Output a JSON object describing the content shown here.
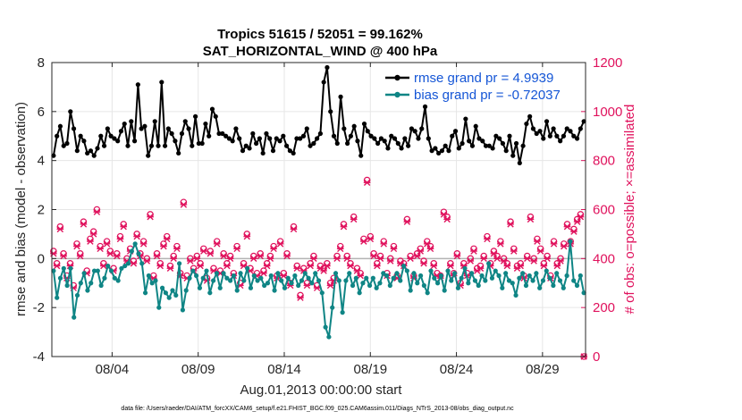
{
  "chart_data": {
    "type": "line",
    "title": "Tropics 51615 / 52051 = 99.162%",
    "subtitle": "SAT_HORIZONTAL_WIND @ 400 hPa",
    "xlabel": "Aug.01,2013 00:00:00 start",
    "ylabel_left": "rmse and bias (model - observation)",
    "ylabel_right": "# of obs: o=possible; ×=assimilated",
    "xlim": [
      0,
      31
    ],
    "ylim_left": [
      -4,
      8
    ],
    "ylim_right": [
      0,
      1200
    ],
    "yticks_left": [
      -4,
      -2,
      0,
      2,
      4,
      6,
      8
    ],
    "yticks_right": [
      0,
      200,
      400,
      600,
      800,
      1000,
      1200
    ],
    "xticks": [
      {
        "day": 3.5,
        "label": "08/04"
      },
      {
        "day": 8.5,
        "label": "08/09"
      },
      {
        "day": 13.5,
        "label": "08/14"
      },
      {
        "day": 18.5,
        "label": "08/19"
      },
      {
        "day": 23.5,
        "label": "08/24"
      },
      {
        "day": 28.5,
        "label": "08/29"
      }
    ],
    "grid": true,
    "legend_position": "top-right",
    "series": [
      {
        "name": "rmse grand pr = 4.9939",
        "axis": "left",
        "color": "#000000",
        "values": [
          4.2,
          5.0,
          5.4,
          4.6,
          4.7,
          6.0,
          5.3,
          4.4,
          5.0,
          4.8,
          4.3,
          4.4,
          4.2,
          4.5,
          5.0,
          4.6,
          5.3,
          5.0,
          4.9,
          4.8,
          5.2,
          5.5,
          4.6,
          5.6,
          4.8,
          7.1,
          5.3,
          5.4,
          4.2,
          4.6,
          5.6,
          4.6,
          7.2,
          4.6,
          5.3,
          5.1,
          4.8,
          4.3,
          5.1,
          5.6,
          5.3,
          4.6,
          5.8,
          4.7,
          4.7,
          5.5,
          5.0,
          6.1,
          5.8,
          5.1,
          5.1,
          5.0,
          4.9,
          4.8,
          5.3,
          4.9,
          4.4,
          4.6,
          4.5,
          5.1,
          4.7,
          4.9,
          4.3,
          5.1,
          4.9,
          4.4,
          4.9,
          4.8,
          5.0,
          4.6,
          4.4,
          4.3,
          4.9,
          4.9,
          5.0,
          5.3,
          4.6,
          4.7,
          4.9,
          5.1,
          7.2,
          7.8,
          6.0,
          5.0,
          4.7,
          6.6,
          5.3,
          4.7,
          5.0,
          5.4,
          4.8,
          4.2,
          5.5,
          5.2,
          5.0,
          4.9,
          4.7,
          4.9,
          4.8,
          4.5,
          5.0,
          4.9,
          4.7,
          4.5,
          4.9,
          4.6,
          5.3,
          5.2,
          4.9,
          5.3,
          6.2,
          4.9,
          4.4,
          4.5,
          4.3,
          4.4,
          4.6,
          4.4,
          5.0,
          5.2,
          4.5,
          4.7,
          5.7,
          4.8,
          4.6,
          5.4,
          4.9,
          4.8,
          4.6,
          4.6,
          4.5,
          5.0,
          4.9,
          4.7,
          4.4,
          5.0,
          4.2,
          4.7,
          3.9,
          4.6,
          5.5,
          5.8,
          5.3,
          5.1,
          5.2,
          4.9,
          5.6,
          5.0,
          5.3,
          5.0,
          4.8,
          5.0,
          5.3,
          5.2,
          5.0,
          4.9,
          5.3,
          5.6
        ]
      },
      {
        "name": "bias grand pr = -0.72037",
        "axis": "left",
        "color": "#0f8585",
        "values": [
          -0.5,
          -1.6,
          -0.8,
          -0.4,
          -1.1,
          -0.4,
          -2.4,
          -1.5,
          -1.0,
          -0.6,
          -1.3,
          -1.0,
          -0.5,
          -0.5,
          -1.1,
          -0.8,
          -0.3,
          -0.5,
          -0.8,
          -0.9,
          -0.4,
          -0.3,
          -0.2,
          0.3,
          0.6,
          0.2,
          -0.2,
          -1.4,
          -0.7,
          -1.0,
          -0.9,
          -2.0,
          -1.2,
          -1.4,
          -1.6,
          -1.3,
          -1.5,
          -0.2,
          -2.1,
          -1.3,
          -0.8,
          -0.5,
          -0.7,
          -1.2,
          -0.8,
          -0.5,
          -1.4,
          -0.9,
          -0.6,
          -1.2,
          -0.6,
          -0.8,
          -0.9,
          -0.7,
          -1.3,
          -0.6,
          -0.9,
          -0.4,
          -1.2,
          -0.7,
          -0.9,
          -0.8,
          -1.1,
          -1.0,
          -0.7,
          -1.3,
          -0.6,
          -0.9,
          -1.2,
          -0.8,
          -1.0,
          -0.7,
          -1.1,
          -0.9,
          -0.6,
          -0.8,
          -1.0,
          -0.6,
          -0.9,
          -1.4,
          -2.8,
          -3.2,
          -2.0,
          -0.6,
          -0.9,
          -2.2,
          -0.9,
          -0.6,
          -1.1,
          -0.8,
          -1.4,
          -1.0,
          -0.8,
          -1.1,
          -0.8,
          -1.2,
          -1.0,
          -0.6,
          -0.7,
          -1.1,
          -0.8,
          -0.6,
          -0.9,
          -0.3,
          -0.5,
          -1.3,
          -0.6,
          -1.0,
          -0.7,
          -1.1,
          -1.4,
          -0.5,
          -0.8,
          -1.0,
          -0.7,
          -1.3,
          -0.5,
          -0.9,
          -0.6,
          -1.2,
          -0.8,
          -0.4,
          -1.0,
          -0.6,
          -0.9,
          -1.1,
          -0.7,
          -0.9,
          -0.2,
          -0.8,
          -0.5,
          -0.7,
          -1.2,
          -0.6,
          -0.9,
          -1.0,
          -1.5,
          -0.8,
          -0.6,
          -1.1,
          -0.7,
          -0.9,
          -0.6,
          -1.2,
          -0.9,
          -0.5,
          -0.8,
          -1.1,
          -0.6,
          -0.9,
          -1.2,
          -0.7,
          0.7,
          -0.9,
          -1.1,
          -0.7,
          -1.4
        ]
      },
      {
        "name": "possible",
        "axis": "right",
        "color": "#e0125d",
        "marker": "o",
        "values": [
          430,
          380,
          530,
          420,
          330,
          380,
          290,
          460,
          420,
          550,
          350,
          480,
          510,
          600,
          450,
          380,
          470,
          430,
          360,
          420,
          490,
          540,
          400,
          440,
          390,
          500,
          420,
          470,
          400,
          580,
          330,
          420,
          380,
          460,
          490,
          370,
          410,
          450,
          340,
          630,
          330,
          400,
          360,
          410,
          380,
          440,
          320,
          430,
          360,
          470,
          350,
          420,
          380,
          410,
          340,
          450,
          300,
          380,
          500,
          360,
          410,
          340,
          420,
          350,
          380,
          410,
          450,
          330,
          470,
          340,
          420,
          300,
          530,
          370,
          250,
          360,
          300,
          380,
          410,
          290,
          370,
          360,
          380,
          300,
          320,
          410,
          450,
          540,
          410,
          380,
          570,
          360,
          340,
          480,
          720,
          490,
          420,
          380,
          410,
          470,
          340,
          400,
          450,
          330,
          390,
          380,
          560,
          410,
          330,
          420,
          440,
          390,
          470,
          450,
          380,
          340,
          330,
          590,
          570,
          380,
          340,
          420,
          300,
          380,
          340,
          400,
          440,
          360,
          370,
          410,
          490,
          380,
          430,
          410,
          470,
          400,
          380,
          550,
          440,
          370,
          380,
          330,
          410,
          570,
          400,
          480,
          440,
          380,
          410,
          330,
          470,
          380,
          400,
          460,
          540,
          470,
          520,
          560,
          580,
          0
        ]
      },
      {
        "name": "assimilated",
        "axis": "right",
        "color": "#e0125d",
        "marker": "x",
        "values": [
          420,
          370,
          520,
          410,
          320,
          370,
          280,
          450,
          410,
          540,
          340,
          470,
          500,
          590,
          440,
          370,
          460,
          420,
          350,
          410,
          480,
          530,
          390,
          430,
          380,
          490,
          410,
          460,
          390,
          570,
          320,
          410,
          370,
          450,
          480,
          360,
          400,
          440,
          330,
          620,
          320,
          390,
          350,
          400,
          370,
          430,
          310,
          420,
          350,
          460,
          340,
          410,
          370,
          400,
          330,
          440,
          290,
          370,
          490,
          350,
          400,
          330,
          410,
          340,
          370,
          400,
          440,
          320,
          460,
          330,
          410,
          290,
          520,
          360,
          240,
          350,
          290,
          370,
          400,
          280,
          360,
          350,
          370,
          290,
          310,
          400,
          440,
          530,
          400,
          370,
          560,
          350,
          330,
          470,
          710,
          480,
          410,
          370,
          400,
          460,
          330,
          390,
          440,
          320,
          380,
          370,
          550,
          400,
          320,
          410,
          430,
          380,
          460,
          440,
          370,
          330,
          320,
          580,
          560,
          370,
          330,
          410,
          290,
          370,
          330,
          390,
          430,
          350,
          360,
          400,
          480,
          370,
          420,
          400,
          460,
          390,
          370,
          540,
          430,
          360,
          370,
          320,
          400,
          560,
          390,
          470,
          430,
          370,
          400,
          320,
          460,
          370,
          390,
          450,
          530,
          460,
          510,
          550,
          570,
          0
        ]
      }
    ],
    "legend": [
      {
        "label": "rmse grand pr = 4.9939",
        "color": "#000000"
      },
      {
        "label": "bias grand pr = -0.72037",
        "color": "#0f8585"
      }
    ],
    "footnote": "data file: /Users/raeder/DAI/ATM_forcXX/CAM6_setup/f.e21.FHIST_BGC.f09_025.CAM6assim.011/Diags_NTrS_2013-08/obs_diag_output.nc"
  }
}
